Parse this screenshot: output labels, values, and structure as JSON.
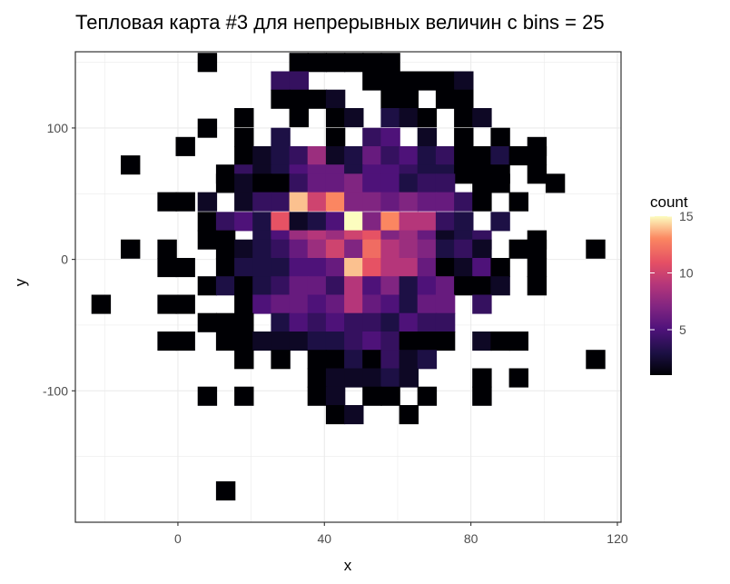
{
  "chart_data": {
    "type": "heatmap",
    "title": "Тепловая карта #3 для непрерывных величин с bins = 25",
    "xlabel": "x",
    "ylabel": "y",
    "xlim": [
      -28,
      121
    ],
    "ylim": [
      -200,
      158
    ],
    "x_ticks": [
      0,
      40,
      80,
      120
    ],
    "y_ticks": [
      -100,
      0,
      100
    ],
    "bin_width": 5.2,
    "bin_height": 14.3,
    "grid": true,
    "legend": {
      "title": "count",
      "position": "right",
      "ticks": [
        5,
        10,
        15
      ],
      "range": [
        1,
        15
      ]
    },
    "cells": [
      [
        33,
        150,
        1
      ],
      [
        38,
        150,
        1
      ],
      [
        43,
        150,
        1
      ],
      [
        48,
        150,
        1
      ],
      [
        53,
        150,
        1
      ],
      [
        58,
        150,
        1
      ],
      [
        28,
        136,
        4
      ],
      [
        33,
        136,
        4
      ],
      [
        53,
        136,
        1
      ],
      [
        58,
        136,
        1
      ],
      [
        63,
        136,
        1
      ],
      [
        68,
        136,
        1
      ],
      [
        73,
        136,
        1
      ],
      [
        78,
        136,
        2
      ],
      [
        28,
        122,
        1
      ],
      [
        33,
        122,
        1
      ],
      [
        38,
        122,
        1
      ],
      [
        43,
        122,
        2
      ],
      [
        58,
        122,
        1
      ],
      [
        63,
        122,
        1
      ],
      [
        73,
        122,
        1
      ],
      [
        78,
        122,
        1
      ],
      [
        18,
        108,
        1
      ],
      [
        33,
        108,
        1
      ],
      [
        43,
        108,
        1
      ],
      [
        48,
        108,
        2
      ],
      [
        58,
        108,
        3
      ],
      [
        63,
        108,
        2
      ],
      [
        68,
        108,
        1
      ],
      [
        78,
        108,
        1
      ],
      [
        83,
        108,
        2
      ],
      [
        18,
        93,
        1
      ],
      [
        28,
        93,
        3
      ],
      [
        43,
        93,
        1
      ],
      [
        53,
        93,
        4
      ],
      [
        58,
        93,
        5
      ],
      [
        68,
        93,
        2
      ],
      [
        78,
        93,
        1
      ],
      [
        88,
        93,
        1
      ],
      [
        8,
        150,
        1
      ],
      [
        -13,
        72,
        1
      ],
      [
        18,
        79,
        1
      ],
      [
        23,
        79,
        2
      ],
      [
        28,
        79,
        3
      ],
      [
        33,
        79,
        4
      ],
      [
        38,
        79,
        8
      ],
      [
        43,
        79,
        2
      ],
      [
        48,
        79,
        3
      ],
      [
        53,
        79,
        6
      ],
      [
        58,
        79,
        4
      ],
      [
        63,
        79,
        5
      ],
      [
        68,
        79,
        3
      ],
      [
        73,
        79,
        4
      ],
      [
        78,
        79,
        1
      ],
      [
        83,
        79,
        1
      ],
      [
        88,
        79,
        3
      ],
      [
        93,
        79,
        1
      ],
      [
        98,
        79,
        1
      ],
      [
        2,
        86,
        1
      ],
      [
        8,
        100,
        1
      ],
      [
        98,
        86,
        1
      ],
      [
        13,
        65,
        1
      ],
      [
        18,
        65,
        4
      ],
      [
        23,
        65,
        2
      ],
      [
        28,
        65,
        3
      ],
      [
        33,
        65,
        5
      ],
      [
        38,
        65,
        6
      ],
      [
        43,
        65,
        6
      ],
      [
        48,
        65,
        3
      ],
      [
        53,
        65,
        5
      ],
      [
        58,
        65,
        5
      ],
      [
        63,
        65,
        4
      ],
      [
        68,
        65,
        3
      ],
      [
        73,
        65,
        3
      ],
      [
        78,
        65,
        1
      ],
      [
        83,
        65,
        1
      ],
      [
        88,
        65,
        1
      ],
      [
        98,
        65,
        1
      ],
      [
        13,
        58,
        1
      ],
      [
        18,
        58,
        2
      ],
      [
        23,
        58,
        1
      ],
      [
        28,
        58,
        1
      ],
      [
        33,
        58,
        4
      ],
      [
        38,
        58,
        6
      ],
      [
        43,
        58,
        6
      ],
      [
        48,
        58,
        7
      ],
      [
        53,
        58,
        5
      ],
      [
        58,
        58,
        5
      ],
      [
        63,
        58,
        3
      ],
      [
        68,
        58,
        4
      ],
      [
        73,
        58,
        4
      ],
      [
        83,
        58,
        1
      ],
      [
        88,
        58,
        1
      ],
      [
        103,
        58,
        1
      ],
      [
        -3,
        44,
        1
      ],
      [
        2,
        44,
        1
      ],
      [
        8,
        44,
        2
      ],
      [
        18,
        44,
        2
      ],
      [
        23,
        44,
        4
      ],
      [
        28,
        44,
        4
      ],
      [
        33,
        44,
        14
      ],
      [
        38,
        44,
        10
      ],
      [
        43,
        44,
        13
      ],
      [
        48,
        44,
        7
      ],
      [
        53,
        44,
        7
      ],
      [
        58,
        44,
        6
      ],
      [
        63,
        44,
        7
      ],
      [
        68,
        44,
        6
      ],
      [
        73,
        44,
        6
      ],
      [
        78,
        44,
        4
      ],
      [
        83,
        44,
        1
      ],
      [
        93,
        44,
        1
      ],
      [
        8,
        29,
        1
      ],
      [
        13,
        29,
        4
      ],
      [
        18,
        29,
        5
      ],
      [
        23,
        29,
        3
      ],
      [
        28,
        29,
        11
      ],
      [
        33,
        29,
        2
      ],
      [
        38,
        29,
        3
      ],
      [
        43,
        29,
        5
      ],
      [
        48,
        29,
        15
      ],
      [
        53,
        29,
        7
      ],
      [
        58,
        29,
        13
      ],
      [
        63,
        29,
        9
      ],
      [
        68,
        29,
        9
      ],
      [
        73,
        29,
        4
      ],
      [
        78,
        29,
        3
      ],
      [
        88,
        29,
        3
      ],
      [
        8,
        15,
        1
      ],
      [
        13,
        15,
        1
      ],
      [
        23,
        15,
        3
      ],
      [
        28,
        15,
        5
      ],
      [
        33,
        15,
        8
      ],
      [
        38,
        15,
        9
      ],
      [
        43,
        15,
        8
      ],
      [
        48,
        15,
        10
      ],
      [
        53,
        15,
        11
      ],
      [
        58,
        15,
        7
      ],
      [
        63,
        15,
        8
      ],
      [
        68,
        15,
        6
      ],
      [
        73,
        15,
        2
      ],
      [
        78,
        15,
        3
      ],
      [
        83,
        15,
        4
      ],
      [
        98,
        15,
        1
      ],
      [
        -13,
        8,
        1
      ],
      [
        -3,
        8,
        1
      ],
      [
        13,
        8,
        1
      ],
      [
        18,
        8,
        2
      ],
      [
        23,
        8,
        3
      ],
      [
        28,
        8,
        4
      ],
      [
        33,
        8,
        6
      ],
      [
        38,
        8,
        8
      ],
      [
        43,
        8,
        10
      ],
      [
        48,
        8,
        7
      ],
      [
        53,
        8,
        12
      ],
      [
        58,
        8,
        9
      ],
      [
        63,
        8,
        8
      ],
      [
        68,
        8,
        7
      ],
      [
        73,
        8,
        3
      ],
      [
        78,
        8,
        4
      ],
      [
        83,
        8,
        2
      ],
      [
        93,
        8,
        1
      ],
      [
        98,
        8,
        1
      ],
      [
        114,
        8,
        1
      ],
      [
        -3,
        -6,
        1
      ],
      [
        2,
        -6,
        1
      ],
      [
        13,
        -6,
        1
      ],
      [
        18,
        -6,
        3
      ],
      [
        23,
        -6,
        3
      ],
      [
        28,
        -6,
        3
      ],
      [
        33,
        -6,
        5
      ],
      [
        38,
        -6,
        5
      ],
      [
        43,
        -6,
        6
      ],
      [
        48,
        -6,
        14
      ],
      [
        53,
        -6,
        11
      ],
      [
        58,
        -6,
        9
      ],
      [
        63,
        -6,
        9
      ],
      [
        68,
        -6,
        6
      ],
      [
        73,
        -6,
        1
      ],
      [
        78,
        -6,
        2
      ],
      [
        83,
        -6,
        5
      ],
      [
        88,
        -6,
        1
      ],
      [
        98,
        -6,
        1
      ],
      [
        8,
        -20,
        1
      ],
      [
        13,
        -20,
        3
      ],
      [
        18,
        -20,
        1
      ],
      [
        23,
        -20,
        3
      ],
      [
        28,
        -20,
        4
      ],
      [
        33,
        -20,
        6
      ],
      [
        38,
        -20,
        6
      ],
      [
        43,
        -20,
        4
      ],
      [
        48,
        -20,
        9
      ],
      [
        53,
        -20,
        5
      ],
      [
        58,
        -20,
        7
      ],
      [
        63,
        -20,
        3
      ],
      [
        68,
        -20,
        5
      ],
      [
        73,
        -20,
        6
      ],
      [
        78,
        -20,
        1
      ],
      [
        83,
        -20,
        1
      ],
      [
        88,
        -20,
        2
      ],
      [
        98,
        -20,
        1
      ],
      [
        -21,
        -34,
        1
      ],
      [
        -3,
        -34,
        1
      ],
      [
        2,
        -34,
        1
      ],
      [
        18,
        -34,
        1
      ],
      [
        23,
        -34,
        5
      ],
      [
        28,
        -34,
        6
      ],
      [
        33,
        -34,
        6
      ],
      [
        38,
        -34,
        5
      ],
      [
        43,
        -34,
        6
      ],
      [
        48,
        -34,
        9
      ],
      [
        53,
        -34,
        6
      ],
      [
        58,
        -34,
        5
      ],
      [
        63,
        -34,
        3
      ],
      [
        68,
        -34,
        6
      ],
      [
        73,
        -34,
        6
      ],
      [
        83,
        -34,
        4
      ],
      [
        8,
        -48,
        1
      ],
      [
        13,
        -48,
        1
      ],
      [
        18,
        -48,
        1
      ],
      [
        28,
        -48,
        3
      ],
      [
        33,
        -48,
        5
      ],
      [
        38,
        -48,
        4
      ],
      [
        43,
        -48,
        5
      ],
      [
        48,
        -48,
        4
      ],
      [
        53,
        -48,
        4
      ],
      [
        58,
        -48,
        3
      ],
      [
        63,
        -48,
        5
      ],
      [
        68,
        -48,
        4
      ],
      [
        73,
        -48,
        4
      ],
      [
        -3,
        -62,
        1
      ],
      [
        2,
        -62,
        1
      ],
      [
        13,
        -62,
        1
      ],
      [
        18,
        -62,
        1
      ],
      [
        23,
        -62,
        2
      ],
      [
        28,
        -62,
        2
      ],
      [
        33,
        -62,
        2
      ],
      [
        38,
        -62,
        3
      ],
      [
        43,
        -62,
        3
      ],
      [
        48,
        -62,
        4
      ],
      [
        53,
        -62,
        5
      ],
      [
        58,
        -62,
        4
      ],
      [
        63,
        -62,
        1
      ],
      [
        68,
        -62,
        1
      ],
      [
        73,
        -62,
        1
      ],
      [
        83,
        -62,
        2
      ],
      [
        88,
        -62,
        1
      ],
      [
        93,
        -62,
        1
      ],
      [
        18,
        -76,
        1
      ],
      [
        28,
        -76,
        1
      ],
      [
        38,
        -76,
        1
      ],
      [
        43,
        -76,
        1
      ],
      [
        48,
        -76,
        3
      ],
      [
        53,
        -76,
        1
      ],
      [
        58,
        -76,
        4
      ],
      [
        63,
        -76,
        2
      ],
      [
        68,
        -76,
        3
      ],
      [
        114,
        -76,
        1
      ],
      [
        38,
        -90,
        1
      ],
      [
        43,
        -90,
        2
      ],
      [
        48,
        -90,
        2
      ],
      [
        53,
        -90,
        2
      ],
      [
        58,
        -90,
        3
      ],
      [
        63,
        -90,
        2
      ],
      [
        83,
        -90,
        1
      ],
      [
        93,
        -90,
        1
      ],
      [
        8,
        -104,
        1
      ],
      [
        18,
        -104,
        1
      ],
      [
        38,
        -104,
        1
      ],
      [
        43,
        -104,
        2
      ],
      [
        53,
        -104,
        1
      ],
      [
        58,
        -104,
        1
      ],
      [
        68,
        -104,
        1
      ],
      [
        83,
        -104,
        1
      ],
      [
        43,
        -118,
        1
      ],
      [
        48,
        -118,
        2
      ],
      [
        63,
        -118,
        1
      ],
      [
        13,
        -176,
        1
      ]
    ]
  }
}
